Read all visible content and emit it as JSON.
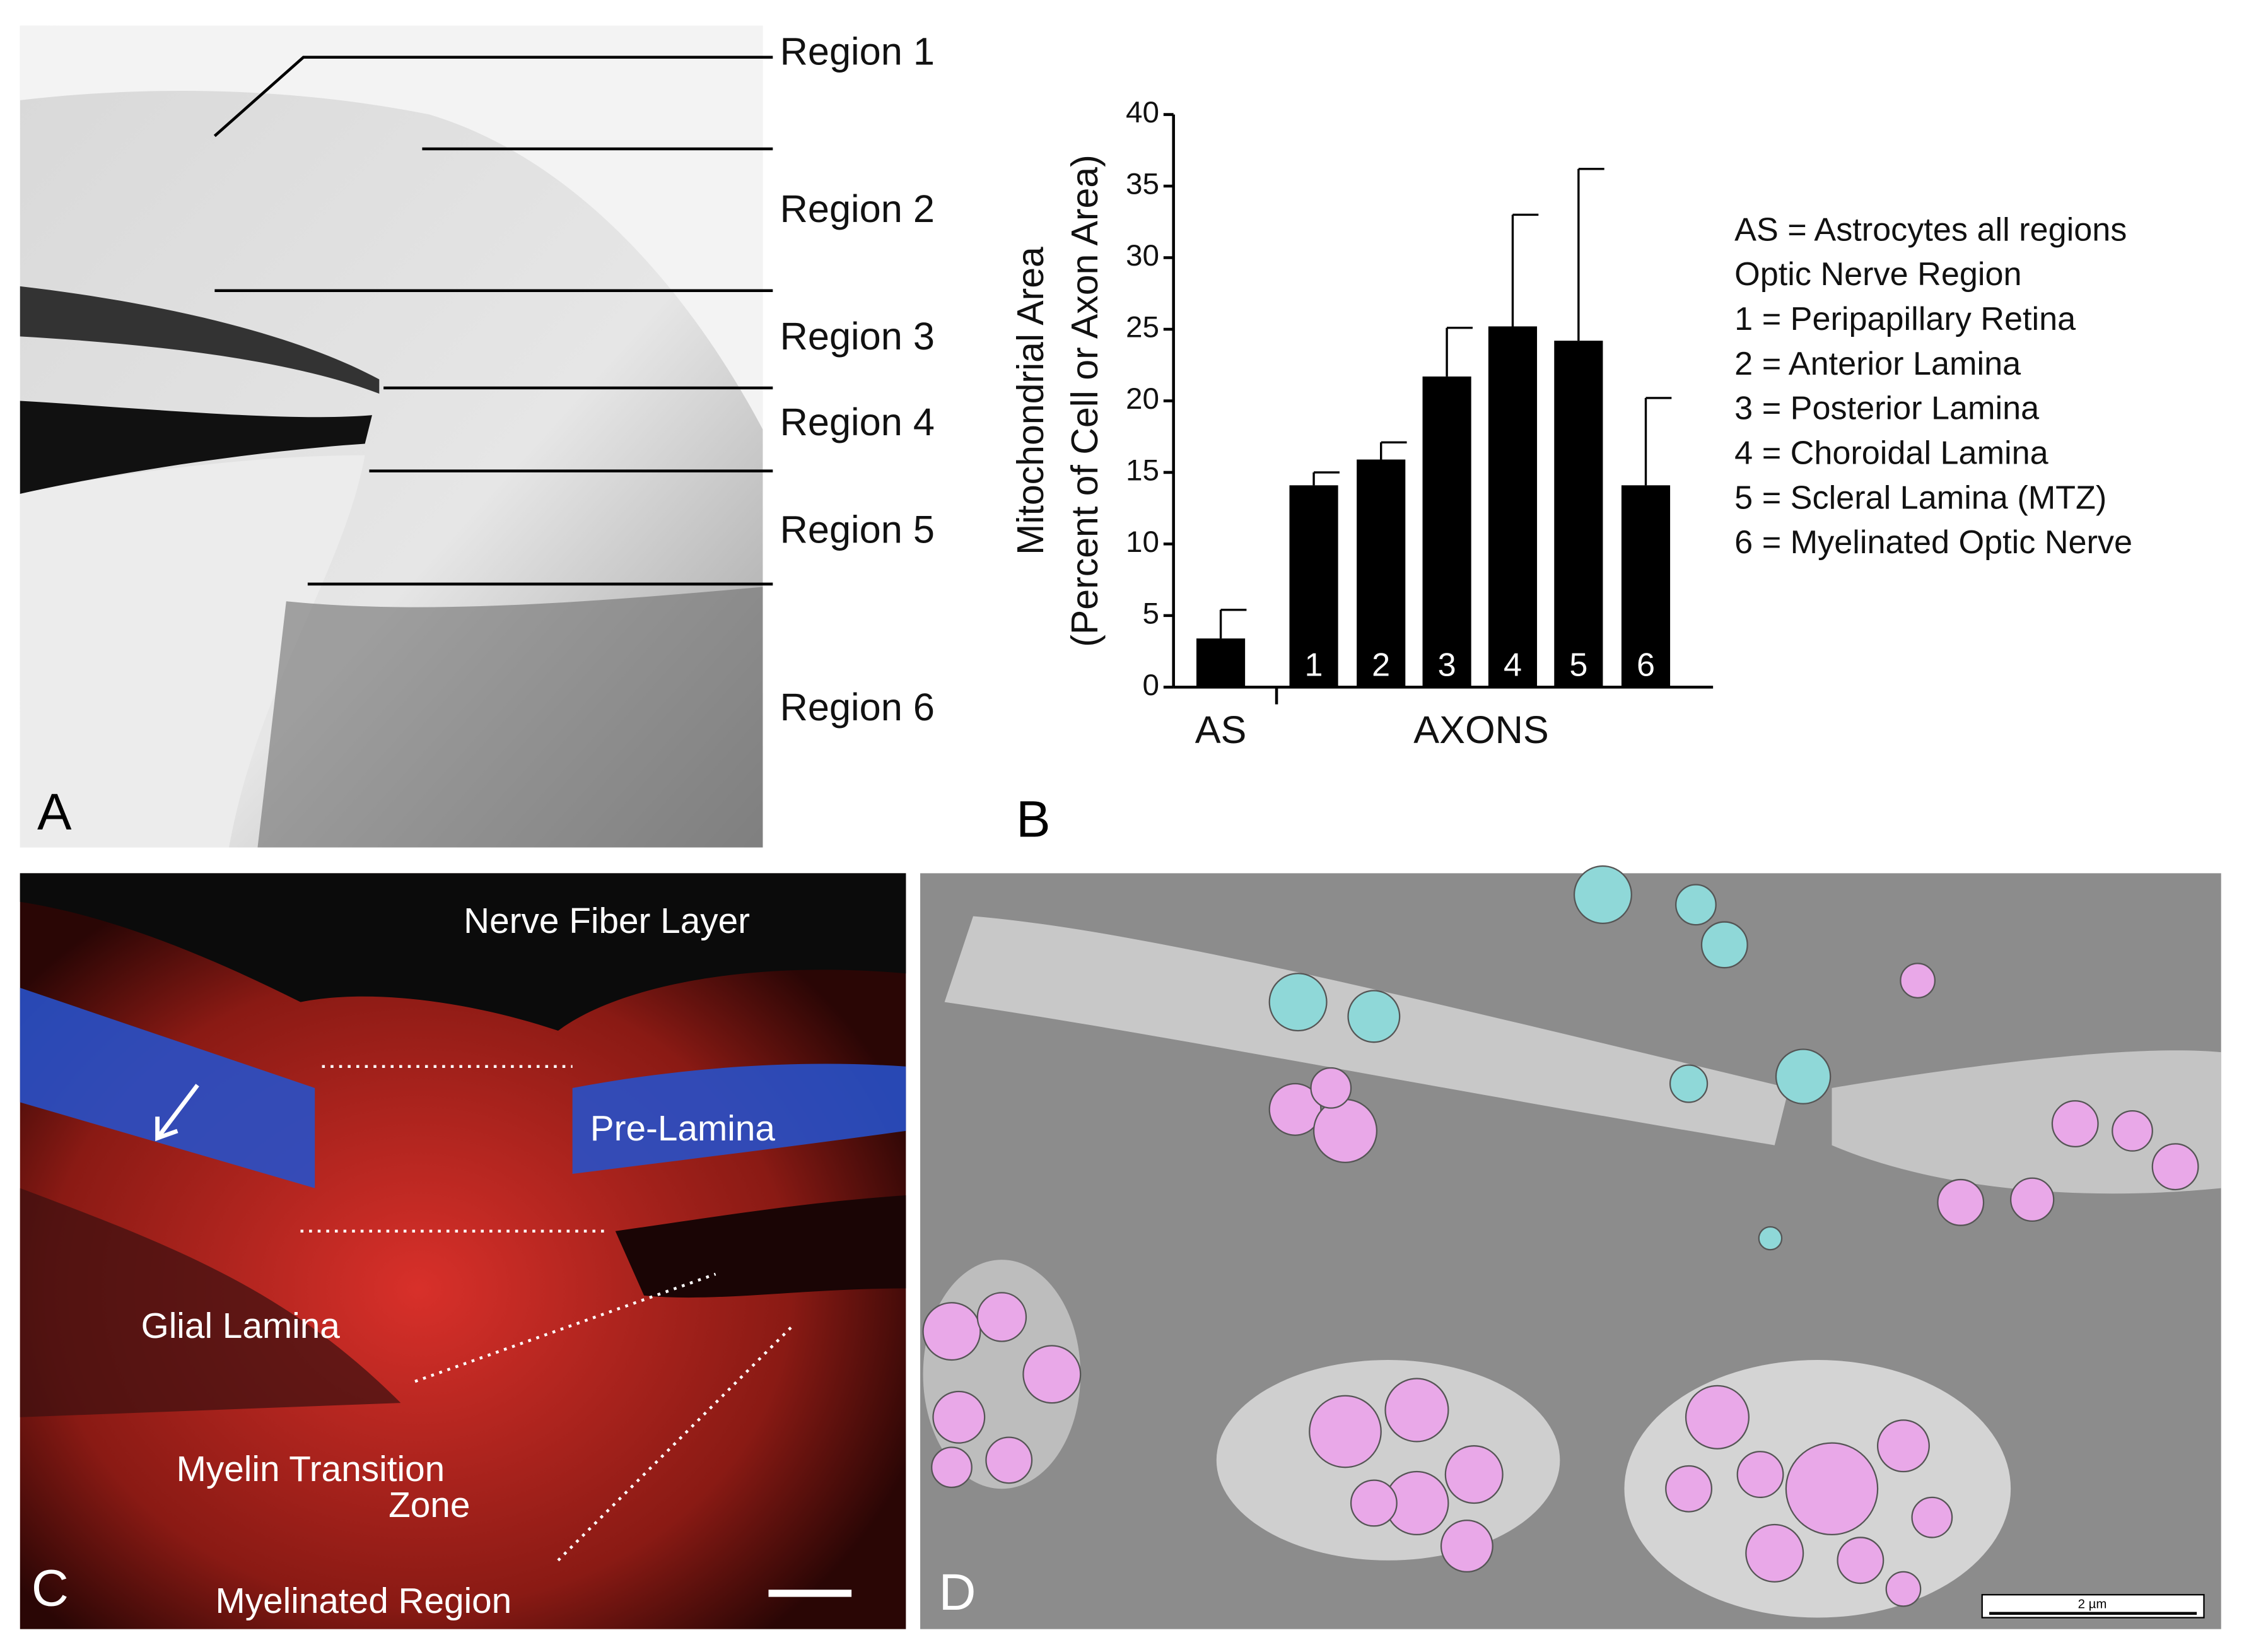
{
  "panel_labels": [
    "A",
    "B",
    "C",
    "D"
  ],
  "panel_a": {
    "regions": [
      "Region 1",
      "Region 2",
      "Region 3",
      "Region 4",
      "Region 5",
      "Region 6"
    ]
  },
  "chart_data": {
    "type": "bar",
    "ylabel": [
      "Mitochondrial Area",
      "(Percent of Cell or Axon Area)"
    ],
    "categories": [
      "AS",
      "1",
      "2",
      "3",
      "4",
      "5",
      "6"
    ],
    "values": [
      3.4,
      14.1,
      15.9,
      21.7,
      25.2,
      24.2,
      14.1
    ],
    "errors": [
      2.0,
      0.9,
      1.2,
      3.4,
      7.8,
      12.0,
      6.1
    ],
    "color": "#000000",
    "ylim": [
      0,
      40
    ],
    "yticks": [
      0,
      5,
      10,
      15,
      20,
      25,
      30,
      35,
      40
    ],
    "grid": false,
    "group_label": "AXONS",
    "legend_lines": [
      "AS = Astrocytes all regions",
      "Optic Nerve Region",
      "1 = Peripapillary Retina",
      "2 = Anterior Lamina",
      "3 = Posterior Lamina",
      "4 = Choroidal Lamina",
      "5 = Scleral Lamina (MTZ)",
      "6 = Myelinated Optic Nerve"
    ]
  },
  "panel_c": {
    "labels": [
      "Nerve Fiber Layer",
      "Pre-Lamina",
      "Glial Lamina",
      "Myelin Transition",
      "Zone",
      "Myelinated Region"
    ]
  },
  "panel_d": {
    "scale_bar": "2 µm"
  }
}
